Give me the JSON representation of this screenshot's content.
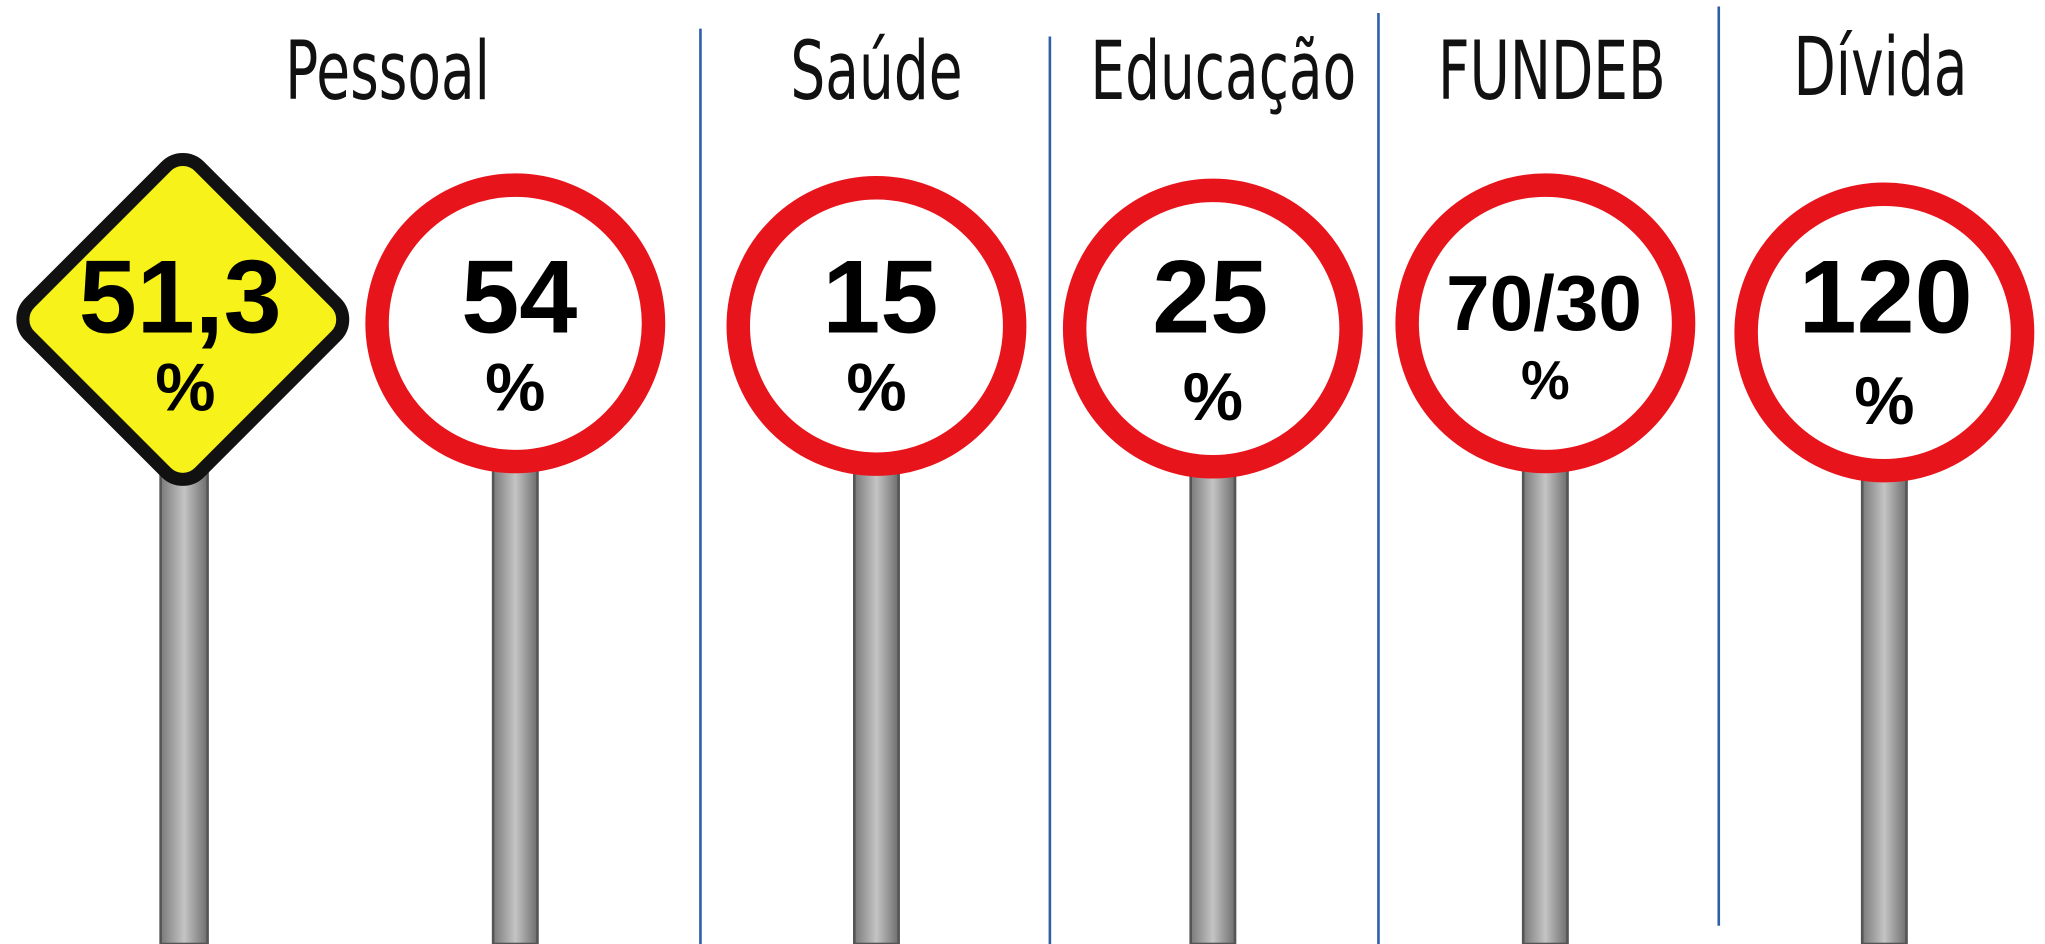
{
  "sections": [
    {
      "title": "Pessoal",
      "signs": [
        {
          "value": "51,3",
          "unit": "%"
        },
        {
          "value": "54",
          "unit": "%"
        }
      ]
    },
    {
      "title": "Saúde",
      "signs": [
        {
          "value": "15",
          "unit": "%"
        }
      ]
    },
    {
      "title": "Educação",
      "signs": [
        {
          "value": "25",
          "unit": "%"
        }
      ]
    },
    {
      "title": "FUNDEB",
      "signs": [
        {
          "value": "70/30",
          "unit": "%"
        }
      ]
    },
    {
      "title": "Dívida",
      "signs": [
        {
          "value": "120",
          "unit": "%"
        }
      ]
    }
  ]
}
